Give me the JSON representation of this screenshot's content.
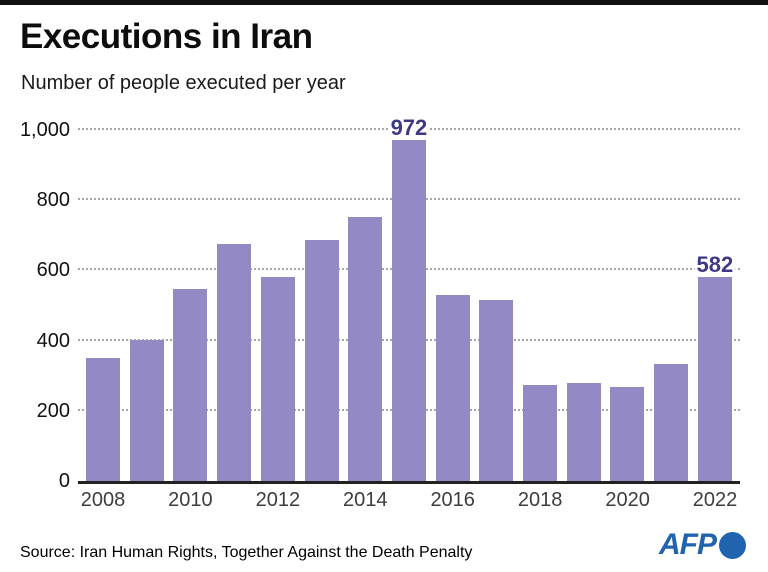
{
  "header": {
    "title": "Executions in Iran",
    "subtitle": "Number of people executed per year"
  },
  "chart_data": {
    "type": "bar",
    "title": "Executions in Iran",
    "subtitle": "Number of people executed per year",
    "x": [
      2008,
      2009,
      2010,
      2011,
      2012,
      2013,
      2014,
      2015,
      2016,
      2017,
      2018,
      2019,
      2020,
      2021,
      2022
    ],
    "values": [
      350,
      402,
      546,
      676,
      580,
      687,
      753,
      972,
      530,
      517,
      273,
      280,
      267,
      333,
      582
    ],
    "annotations": [
      {
        "x": 2015,
        "text": "972"
      },
      {
        "x": 2022,
        "text": "582"
      }
    ],
    "xticks": [
      "2008",
      "2010",
      "2012",
      "2014",
      "2016",
      "2018",
      "2020",
      "2022"
    ],
    "yticks": [
      0,
      200,
      400,
      600,
      800,
      1000
    ],
    "ytick_labels": [
      "0",
      "200",
      "400",
      "600",
      "800",
      "1,000"
    ],
    "ylim": [
      0,
      1000
    ],
    "grid": "horizontal-dotted",
    "legend": "none",
    "bar_color": "#938AC5",
    "annotation_color": "#3F3883"
  },
  "footer": {
    "source": "Source: Iran Human Rights, Together Against the Death Penalty",
    "logo_text": "AFP",
    "logo_color": "#2063AE"
  }
}
